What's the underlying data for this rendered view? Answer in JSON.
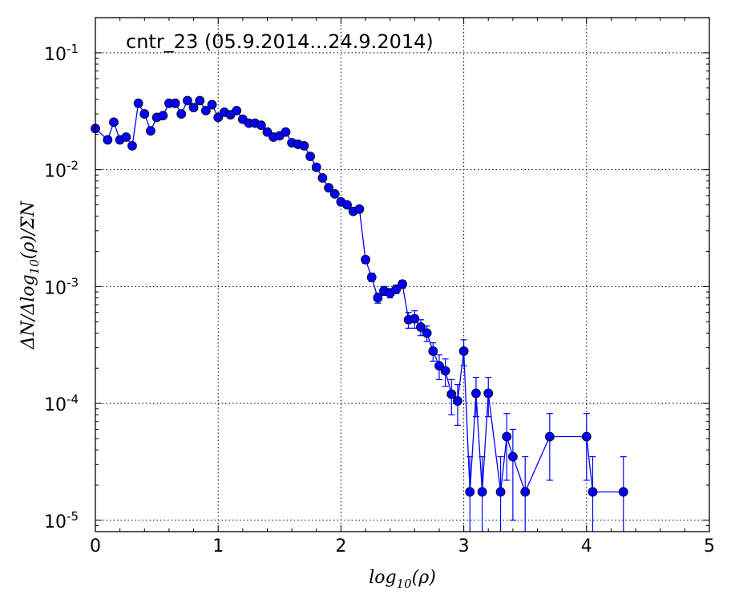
{
  "chart_data": {
    "type": "scatter",
    "title": "cntr_23 (05.9.2014...24.9.2014)",
    "xlabel": "log10(ρ)",
    "ylabel": "ΔN/Δlog10(ρ)/ΣN",
    "xlim": [
      0,
      5
    ],
    "ylim": [
      8e-06,
      0.2
    ],
    "yscale": "log",
    "grid": true,
    "x_ticks": [
      "0",
      "1",
      "2",
      "3",
      "4",
      "5"
    ],
    "y_ticks": [
      {
        "base": "10",
        "exp": "-1"
      },
      {
        "base": "10",
        "exp": "-2"
      },
      {
        "base": "10",
        "exp": "-3"
      },
      {
        "base": "10",
        "exp": "-4"
      },
      {
        "base": "10",
        "exp": "-5"
      }
    ],
    "series": [
      {
        "color": "#0000ff",
        "marker": "circle",
        "x": [
          0.0,
          0.1,
          0.15,
          0.2,
          0.25,
          0.3,
          0.35,
          0.4,
          0.45,
          0.5,
          0.55,
          0.6,
          0.65,
          0.7,
          0.75,
          0.8,
          0.85,
          0.9,
          0.95,
          1.0,
          1.05,
          1.1,
          1.15,
          1.2,
          1.25,
          1.3,
          1.35,
          1.4,
          1.45,
          1.5,
          1.55,
          1.6,
          1.65,
          1.7,
          1.75,
          1.8,
          1.85,
          1.9,
          1.95,
          2.0,
          2.05,
          2.1,
          2.15,
          2.2,
          2.25,
          2.3,
          2.35,
          2.4,
          2.45,
          2.5,
          2.55,
          2.6,
          2.65,
          2.7,
          2.75,
          2.8,
          2.85,
          2.9,
          2.95,
          3.0,
          3.05,
          3.1,
          3.15,
          3.2,
          3.3,
          3.35,
          3.4,
          3.5,
          3.7,
          4.0,
          4.05,
          4.3
        ],
        "y": [
          0.0225,
          0.018,
          0.0255,
          0.018,
          0.019,
          0.016,
          0.037,
          0.03,
          0.0215,
          0.028,
          0.029,
          0.037,
          0.037,
          0.03,
          0.039,
          0.034,
          0.039,
          0.032,
          0.036,
          0.028,
          0.031,
          0.0295,
          0.032,
          0.027,
          0.025,
          0.025,
          0.024,
          0.021,
          0.019,
          0.0195,
          0.021,
          0.017,
          0.0165,
          0.016,
          0.013,
          0.0105,
          0.0085,
          0.007,
          0.0062,
          0.0053,
          0.005,
          0.0044,
          0.0046,
          0.0017,
          0.0012,
          0.0008,
          0.00092,
          0.00088,
          0.00095,
          0.00105,
          0.00052,
          0.00053,
          0.00045,
          0.0004,
          0.00028,
          0.00021,
          0.00019,
          0.00012,
          0.000105,
          0.00028,
          1.75e-05,
          0.000122,
          1.75e-05,
          0.000122,
          1.75e-05,
          5.2e-05,
          3.5e-05,
          1.75e-05,
          5.2e-05,
          5.2e-05,
          1.75e-05,
          1.75e-05
        ],
        "err": [
          0.001,
          0.001,
          0.001,
          0.001,
          0.001,
          0.001,
          0.001,
          0.001,
          0.001,
          0.001,
          0.001,
          0.001,
          0.001,
          0.001,
          0.001,
          0.001,
          0.001,
          0.001,
          0.001,
          0.001,
          0.001,
          0.001,
          0.001,
          0.001,
          0.001,
          0.001,
          0.001,
          0.001,
          0.001,
          0.001,
          0.001,
          0.001,
          0.001,
          0.001,
          0.0007,
          0.0006,
          0.0005,
          0.0004,
          0.00035,
          0.0003,
          0.00028,
          0.00025,
          0.00025,
          0.00012,
          0.0001,
          8e-05,
          8e-05,
          8e-05,
          8e-05,
          8e-05,
          8e-05,
          9e-05,
          7e-05,
          6e-05,
          5e-05,
          5e-05,
          5e-05,
          4e-05,
          4e-05,
          7e-05,
          1.75e-05,
          4.5e-05,
          1.75e-05,
          4.5e-05,
          1.75e-05,
          3e-05,
          2.5e-05,
          1.75e-05,
          3e-05,
          3e-05,
          1.75e-05,
          1.75e-05
        ]
      }
    ]
  }
}
